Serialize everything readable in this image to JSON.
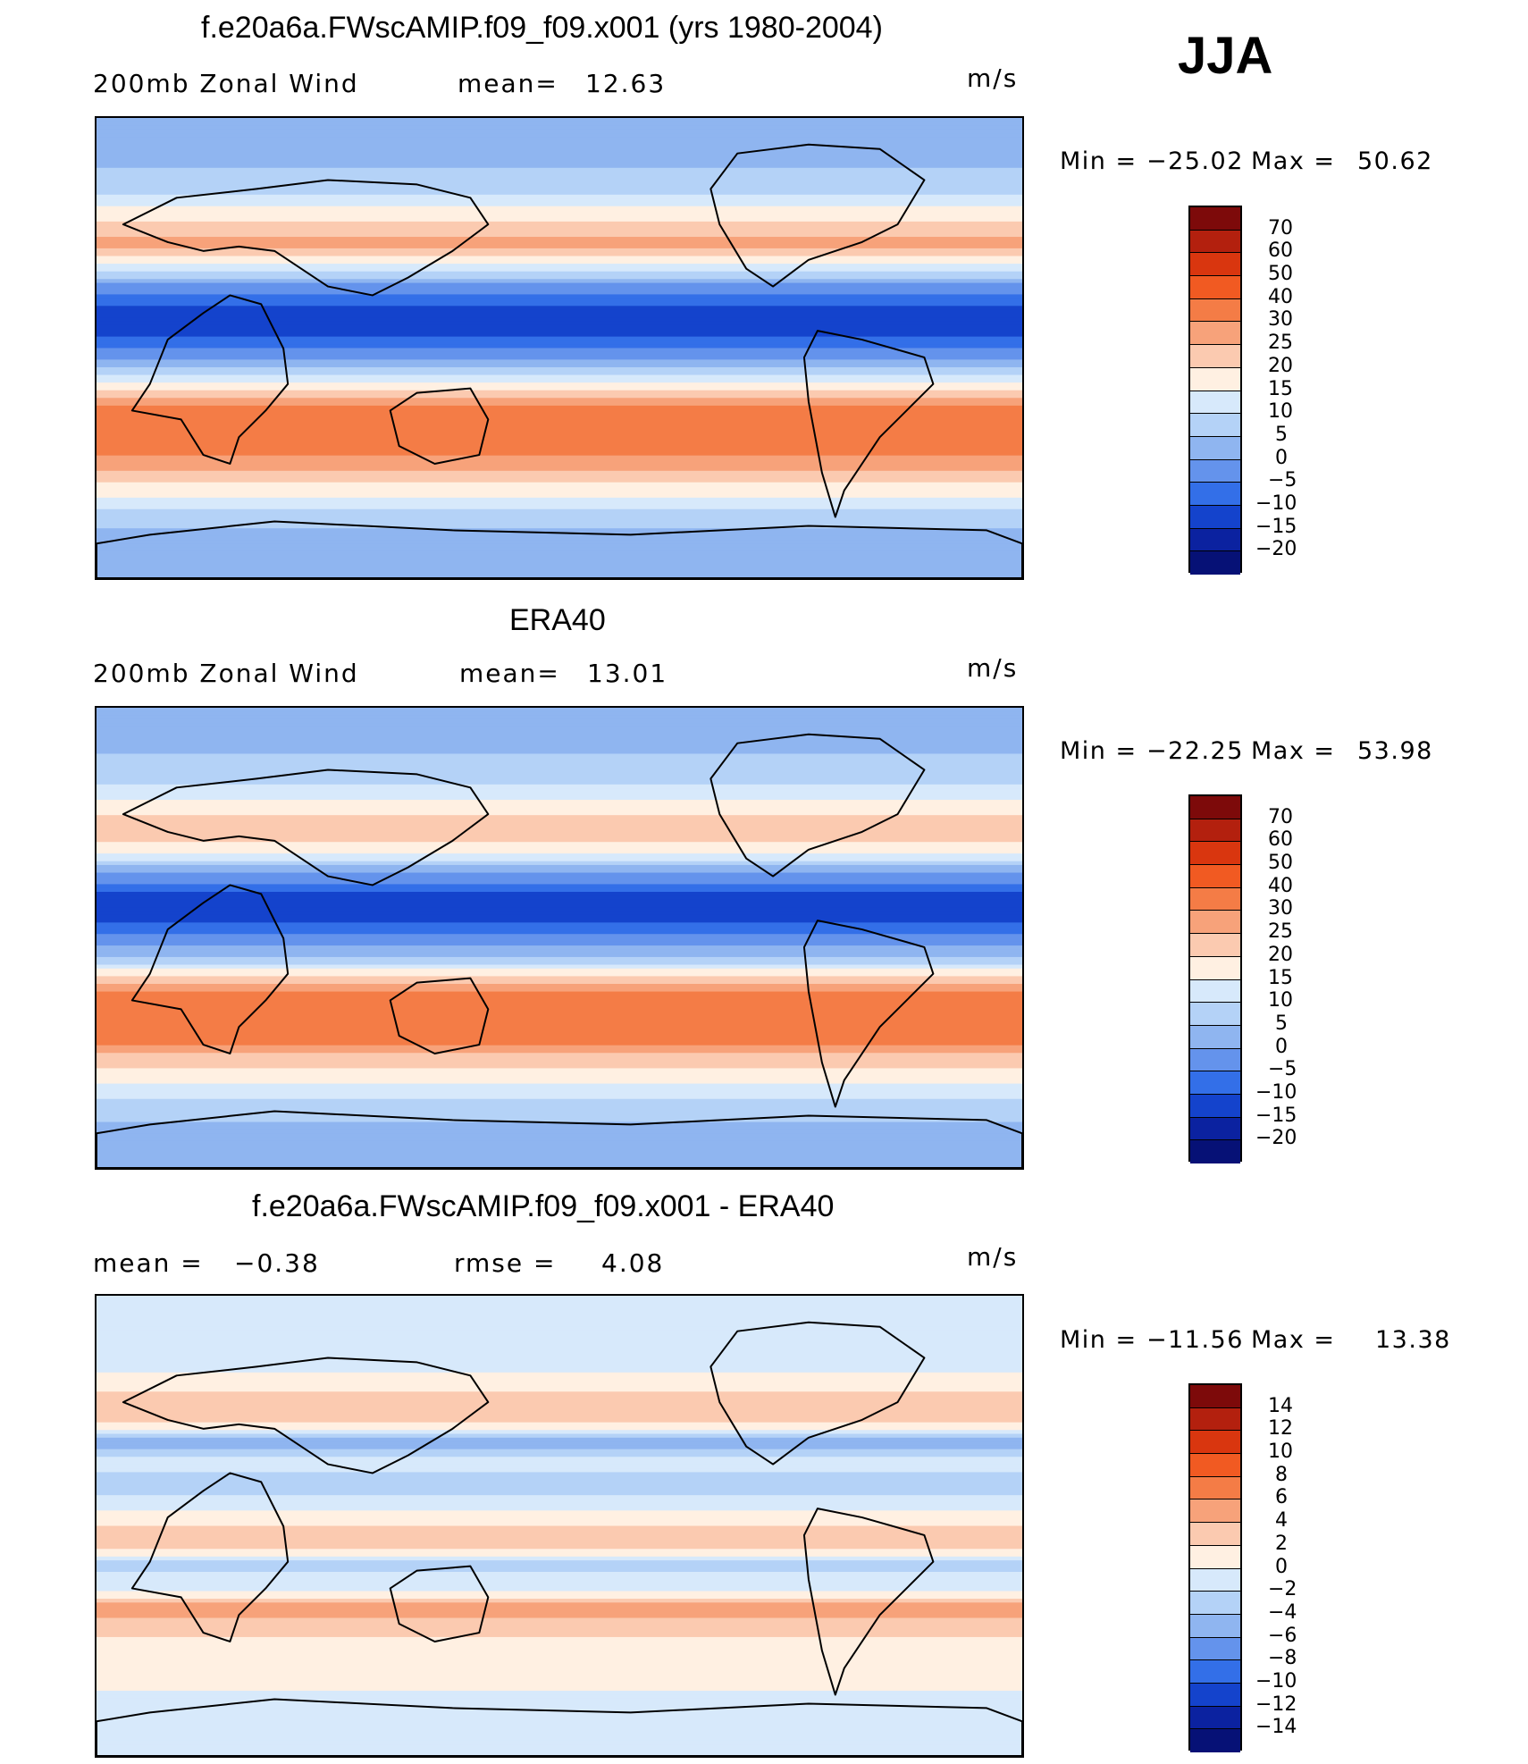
{
  "season": "JJA",
  "chart_data": [
    {
      "type": "heatmap",
      "title": "f.e20a6a.FWscAMIP.f09_f09.x001 (yrs 1980-2004)",
      "left_label": "200mb Zonal Wind",
      "center_label": "mean=",
      "center_value": "12.63",
      "units": "m/s",
      "min_label": "Min = ",
      "min_value": "−25.02",
      "max_label": "Max = ",
      "max_value": "50.62",
      "colorbar_levels": [
        "70",
        "60",
        "50",
        "40",
        "30",
        "25",
        "20",
        "15",
        "10",
        "5",
        "0",
        "−5",
        "−10",
        "−15",
        "−20"
      ],
      "colorbar_colors": [
        "#7d0a0a",
        "#b3200e",
        "#d9360f",
        "#f15a22",
        "#f47c46",
        "#f7a27a",
        "#fbcab0",
        "#fff0e2",
        "#d7e9fb",
        "#b4d2f7",
        "#8fb5f0",
        "#6493ec",
        "#336fe8",
        "#1443cc",
        "#0b22a0",
        "#061176"
      ],
      "zonal_bands_lat_to_value": [
        [
          90,
          5
        ],
        [
          75,
          3
        ],
        [
          60,
          10
        ],
        [
          48,
          22
        ],
        [
          40,
          28
        ],
        [
          33,
          15
        ],
        [
          25,
          0
        ],
        [
          17,
          -10
        ],
        [
          8,
          -15
        ],
        [
          0,
          -5
        ],
        [
          -8,
          5
        ],
        [
          -15,
          18
        ],
        [
          -25,
          35
        ],
        [
          -32,
          38
        ],
        [
          -40,
          32
        ],
        [
          -48,
          25
        ],
        [
          -55,
          18
        ],
        [
          -65,
          8
        ],
        [
          -75,
          3
        ],
        [
          -90,
          0
        ]
      ]
    },
    {
      "type": "heatmap",
      "title": "ERA40",
      "left_label": "200mb Zonal Wind",
      "center_label": "mean=",
      "center_value": "13.01",
      "units": "m/s",
      "min_label": "Min = ",
      "min_value": "−22.25",
      "max_label": "Max = ",
      "max_value": "53.98",
      "colorbar_levels": [
        "70",
        "60",
        "50",
        "40",
        "30",
        "25",
        "20",
        "15",
        "10",
        "5",
        "0",
        "−5",
        "−10",
        "−15",
        "−20"
      ],
      "colorbar_colors": [
        "#7d0a0a",
        "#b3200e",
        "#d9360f",
        "#f15a22",
        "#f47c46",
        "#f7a27a",
        "#fbcab0",
        "#fff0e2",
        "#d7e9fb",
        "#b4d2f7",
        "#8fb5f0",
        "#6493ec",
        "#336fe8",
        "#1443cc",
        "#0b22a0",
        "#061176"
      ],
      "zonal_bands_lat_to_value": [
        [
          90,
          5
        ],
        [
          75,
          4
        ],
        [
          60,
          10
        ],
        [
          48,
          20
        ],
        [
          40,
          25
        ],
        [
          33,
          14
        ],
        [
          25,
          0
        ],
        [
          17,
          -12
        ],
        [
          8,
          -13
        ],
        [
          0,
          -4
        ],
        [
          -8,
          6
        ],
        [
          -15,
          20
        ],
        [
          -25,
          38
        ],
        [
          -32,
          40
        ],
        [
          -40,
          32
        ],
        [
          -48,
          22
        ],
        [
          -55,
          16
        ],
        [
          -65,
          8
        ],
        [
          -75,
          4
        ],
        [
          -90,
          0
        ]
      ]
    },
    {
      "type": "heatmap",
      "title": "f.e20a6a.FWscAMIP.f09_f09.x001 - ERA40",
      "left_label": "mean = ",
      "left_value": "−0.38",
      "center_label": "rmse = ",
      "center_value": "4.08",
      "units": "m/s",
      "min_label": "Min = ",
      "min_value": "−11.56",
      "max_label": "Max = ",
      "max_value": "13.38",
      "colorbar_levels": [
        "14",
        "12",
        "10",
        "8",
        "6",
        "4",
        "2",
        "0",
        "−2",
        "−4",
        "−6",
        "−8",
        "−10",
        "−12",
        "−14"
      ],
      "colorbar_colors": [
        "#7d0a0a",
        "#b3200e",
        "#d9360f",
        "#f15a22",
        "#f47c46",
        "#f7a27a",
        "#fbcab0",
        "#fff0e2",
        "#d7e9fb",
        "#b4d2f7",
        "#8fb5f0",
        "#6493ec",
        "#336fe8",
        "#1443cc",
        "#0b22a0",
        "#061176"
      ],
      "zonal_bands_lat_to_value": [
        [
          90,
          0
        ],
        [
          75,
          -1
        ],
        [
          60,
          0
        ],
        [
          48,
          3
        ],
        [
          40,
          2
        ],
        [
          33,
          -6
        ],
        [
          25,
          -1
        ],
        [
          17,
          -3
        ],
        [
          8,
          -1
        ],
        [
          0,
          2
        ],
        [
          -8,
          3
        ],
        [
          -15,
          -3
        ],
        [
          -25,
          0
        ],
        [
          -32,
          5
        ],
        [
          -40,
          3
        ],
        [
          -48,
          1
        ],
        [
          -55,
          2
        ],
        [
          -65,
          0
        ],
        [
          -75,
          -1
        ],
        [
          -90,
          0
        ]
      ]
    }
  ]
}
